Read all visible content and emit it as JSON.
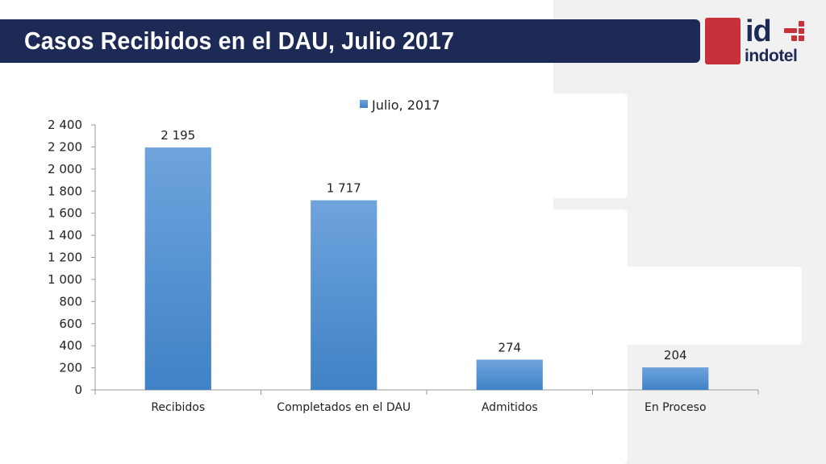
{
  "header": {
    "title": "Casos Recibidos en el DAU, Julio 2017"
  },
  "logo": {
    "mark": "id",
    "name": "indotel"
  },
  "colors": {
    "title_bar": "#1d2a55",
    "bar_top": "#6fa4dd",
    "bar_bottom": "#3f82c6",
    "logo_red": "#c8303a",
    "panel": "#f1f1f1"
  },
  "chart_data": {
    "type": "bar",
    "categories": [
      "Recibidos",
      "Completados en el DAU",
      "Admitidos",
      "En Proceso"
    ],
    "series": [
      {
        "name": "Julio, 2017",
        "values": [
          2195,
          1717,
          274,
          204
        ]
      }
    ],
    "data_labels": [
      "2 195",
      "1 717",
      "274",
      "204"
    ],
    "y_ticks": [
      0,
      200,
      400,
      600,
      800,
      1000,
      1200,
      1400,
      1600,
      1800,
      2000,
      2200,
      2400
    ],
    "y_tick_labels": [
      "0",
      "200",
      "400",
      "600",
      "800",
      "1 000",
      "1 200",
      "1 400",
      "1 600",
      "1 800",
      "2 000",
      "2 200",
      "2 400"
    ],
    "ylim": [
      0,
      2400
    ],
    "grid": false,
    "legend_position": "top"
  }
}
